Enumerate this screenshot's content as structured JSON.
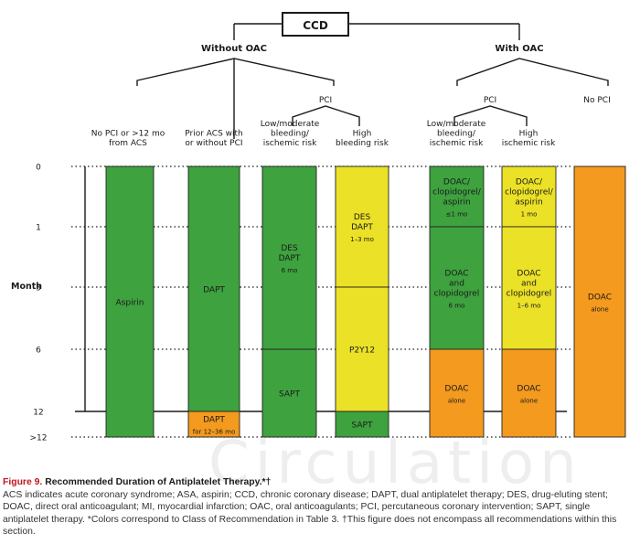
{
  "top_label": "CCD",
  "groups": {
    "without_oac": "Without OAC",
    "with_oac": "With OAC",
    "pci_left": "PCI",
    "pci_right": "PCI",
    "no_pci": "No PCI"
  },
  "column_headers": [
    "No PCI or >12 mo\nfrom ACS",
    "Prior ACS with\nor without PCI",
    "Low/moderate\nbleeding/\nischemic risk",
    "High\nbleeding risk",
    "Low/moderate\nbleeding/\nischemic risk",
    "High\nischemic risk"
  ],
  "axis": {
    "label": "Month",
    "ticks": [
      "0",
      "1",
      "3",
      "6",
      "12",
      ">12"
    ]
  },
  "colors": {
    "green": "#3ea23f",
    "yellow": "#ebe127",
    "orange": "#f49a1e",
    "caption_red": "#c0161c"
  },
  "blocks": [
    {
      "col": 0,
      "from": 0,
      "to": 5,
      "color": "green",
      "text": "Aspirin"
    },
    {
      "col": 1,
      "from": 0,
      "to": 4,
      "color": "green",
      "text": "DAPT"
    },
    {
      "col": 1,
      "from": 4,
      "to": 5,
      "color": "orange",
      "text": "DAPT",
      "sub": "for 12–36 mo"
    },
    {
      "col": 2,
      "from": 0,
      "to": 3,
      "color": "green",
      "text": "DES\nDAPT",
      "sub": "6 mo"
    },
    {
      "col": 2,
      "from": 3,
      "to": 5,
      "color": "green",
      "text": "SAPT"
    },
    {
      "col": 3,
      "from": 0,
      "to": 2,
      "color": "yellow",
      "text": "DES\nDAPT",
      "sub": "1–3 mo"
    },
    {
      "col": 3,
      "from": 2,
      "to": 4,
      "color": "yellow",
      "text": "P2Y12"
    },
    {
      "col": 3,
      "from": 4,
      "to": 5,
      "color": "green",
      "text": "SAPT"
    },
    {
      "col": 4,
      "from": 0,
      "to": 1,
      "color": "green",
      "text": "DOAC/\nclopidogrel/\naspirin",
      "sub": "≤1 mo"
    },
    {
      "col": 4,
      "from": 1,
      "to": 3,
      "color": "green",
      "text": "DOAC\nand\nclopidogrel",
      "sub": "6 mo"
    },
    {
      "col": 4,
      "from": 3,
      "to": 5,
      "color": "orange",
      "text": "DOAC",
      "sub": "alone"
    },
    {
      "col": 5,
      "from": 0,
      "to": 1,
      "color": "yellow",
      "text": "DOAC/\nclopidogrel/\naspirin",
      "sub": "1 mo"
    },
    {
      "col": 5,
      "from": 1,
      "to": 3,
      "color": "yellow",
      "text": "DOAC\nand\nclopidogrel",
      "sub": "1–6 mo"
    },
    {
      "col": 5,
      "from": 3,
      "to": 5,
      "color": "orange",
      "text": "DOAC",
      "sub": "alone"
    },
    {
      "col": 6,
      "from": 0,
      "to": 5,
      "color": "orange",
      "text": "DOAC",
      "sub": "alone"
    }
  ],
  "caption": {
    "label": "Figure 9.",
    "title": "Recommended Duration of Antiplatelet Therapy.*†",
    "body": "ACS indicates acute coronary syndrome; ASA, aspirin; CCD, chronic coronary disease; DAPT, dual antiplatelet therapy; DES, drug-eluting stent; DOAC, direct oral anticoagulant; MI, myocardial infarction; OAC, oral anticoagulants; PCI, percutaneous coronary intervention; SAPT, single antiplatelet therapy. *Colors correspond to Class of Recommendation in Table 3. †This figure does not encompass all recommendations within this section."
  },
  "watermark": "Circulation"
}
